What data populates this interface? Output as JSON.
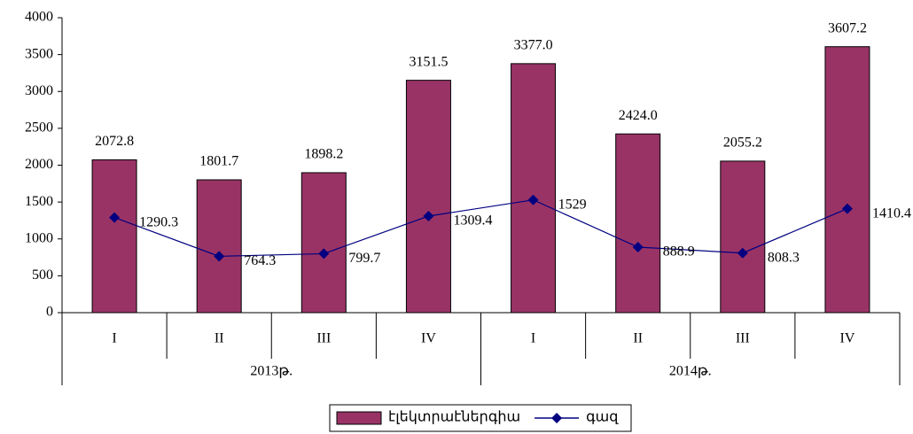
{
  "chart_data": {
    "type": "bar",
    "categories": [
      "I",
      "II",
      "III",
      "IV",
      "I",
      "II",
      "III",
      "IV"
    ],
    "group_labels": [
      "2013թ.",
      "2014թ."
    ],
    "series": [
      {
        "name": "էլեկտրաէներգիա",
        "type": "bar",
        "color": "#993366",
        "values": [
          2072.8,
          1801.7,
          1898.2,
          3151.5,
          3377.0,
          2424.0,
          2055.2,
          3607.2
        ],
        "value_labels": [
          "2072.8",
          "1801.7",
          "1898.2",
          "3151.5",
          "3377.0",
          "2424.0",
          "2055.2",
          "3607.2"
        ]
      },
      {
        "name": "գազ",
        "type": "line",
        "color": "#000080",
        "values": [
          1290.3,
          764.3,
          799.7,
          1309.4,
          1529,
          888.9,
          808.3,
          1410.4
        ]
      }
    ],
    "ylim": [
      0,
      4000
    ],
    "yticks": [
      0,
      500,
      1000,
      1500,
      2000,
      2500,
      3000,
      3500,
      4000
    ],
    "grid": false,
    "legend": "bottom"
  }
}
